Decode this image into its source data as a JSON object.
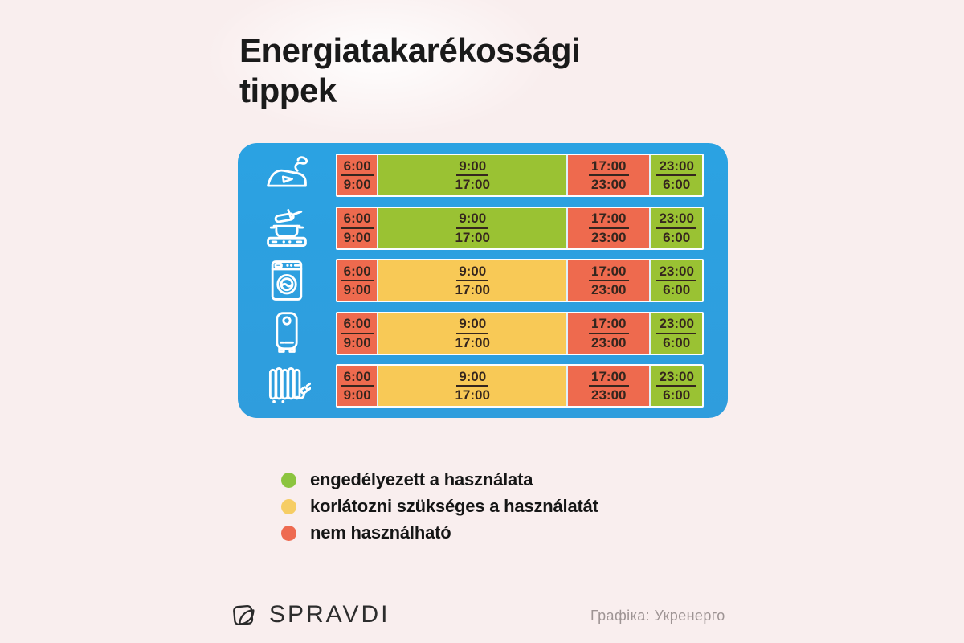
{
  "title": {
    "line1": "Energiatakarékossági",
    "line2": "tippek"
  },
  "colors": {
    "background": "#f9eeee",
    "panel_blue": "#2ba2e2",
    "allowed_green": "#9ac233",
    "limited_yellow": "#f8c956",
    "forbidden_red": "#ee6a4e",
    "legend_green": "#8cc43f",
    "legend_yellow": "#f6cd64",
    "legend_red": "#ee6a50",
    "time_text": "#35261e",
    "title_text": "#1a1a1a",
    "credit_text": "#9e9494"
  },
  "schedule": {
    "rows": [
      {
        "icon": "iron-icon",
        "appliance": "iron",
        "segments": [
          {
            "from": "6:00",
            "to": "9:00",
            "status": "forbidden",
            "width_pct": 11.0
          },
          {
            "from": "9:00",
            "to": "17:00",
            "status": "allowed",
            "width_pct": 52.2
          },
          {
            "from": "17:00",
            "to": "23:00",
            "status": "forbidden",
            "width_pct": 22.6
          },
          {
            "from": "23:00",
            "to": "6:00",
            "status": "allowed",
            "width_pct": 14.2
          }
        ]
      },
      {
        "icon": "pot-stove-icon",
        "appliance": "electric-stove",
        "segments": [
          {
            "from": "6:00",
            "to": "9:00",
            "status": "forbidden",
            "width_pct": 11.0
          },
          {
            "from": "9:00",
            "to": "17:00",
            "status": "allowed",
            "width_pct": 52.2
          },
          {
            "from": "17:00",
            "to": "23:00",
            "status": "forbidden",
            "width_pct": 22.6
          },
          {
            "from": "23:00",
            "to": "6:00",
            "status": "allowed",
            "width_pct": 14.2
          }
        ]
      },
      {
        "icon": "washing-machine-icon",
        "appliance": "washing-machine",
        "segments": [
          {
            "from": "6:00",
            "to": "9:00",
            "status": "forbidden",
            "width_pct": 11.0
          },
          {
            "from": "9:00",
            "to": "17:00",
            "status": "limited",
            "width_pct": 52.2
          },
          {
            "from": "17:00",
            "to": "23:00",
            "status": "forbidden",
            "width_pct": 22.6
          },
          {
            "from": "23:00",
            "to": "6:00",
            "status": "allowed",
            "width_pct": 14.2
          }
        ]
      },
      {
        "icon": "boiler-icon",
        "appliance": "water-heater",
        "segments": [
          {
            "from": "6:00",
            "to": "9:00",
            "status": "forbidden",
            "width_pct": 11.0
          },
          {
            "from": "9:00",
            "to": "17:00",
            "status": "limited",
            "width_pct": 52.2
          },
          {
            "from": "17:00",
            "to": "23:00",
            "status": "forbidden",
            "width_pct": 22.6
          },
          {
            "from": "23:00",
            "to": "6:00",
            "status": "allowed",
            "width_pct": 14.2
          }
        ]
      },
      {
        "icon": "radiator-heater-icon",
        "appliance": "electric-heater",
        "segments": [
          {
            "from": "6:00",
            "to": "9:00",
            "status": "forbidden",
            "width_pct": 11.0
          },
          {
            "from": "9:00",
            "to": "17:00",
            "status": "limited",
            "width_pct": 52.2
          },
          {
            "from": "17:00",
            "to": "23:00",
            "status": "forbidden",
            "width_pct": 22.6
          },
          {
            "from": "23:00",
            "to": "6:00",
            "status": "allowed",
            "width_pct": 14.2
          }
        ]
      }
    ]
  },
  "legend": {
    "items": [
      {
        "status": "allowed",
        "label": "engedélyezett a használata"
      },
      {
        "status": "limited",
        "label": "korlátozni szükséges a használatát"
      },
      {
        "status": "forbidden",
        "label": "nem használható"
      }
    ]
  },
  "footer": {
    "brand": "SPRAVDI",
    "credit": "Графіка: Укренерго"
  }
}
